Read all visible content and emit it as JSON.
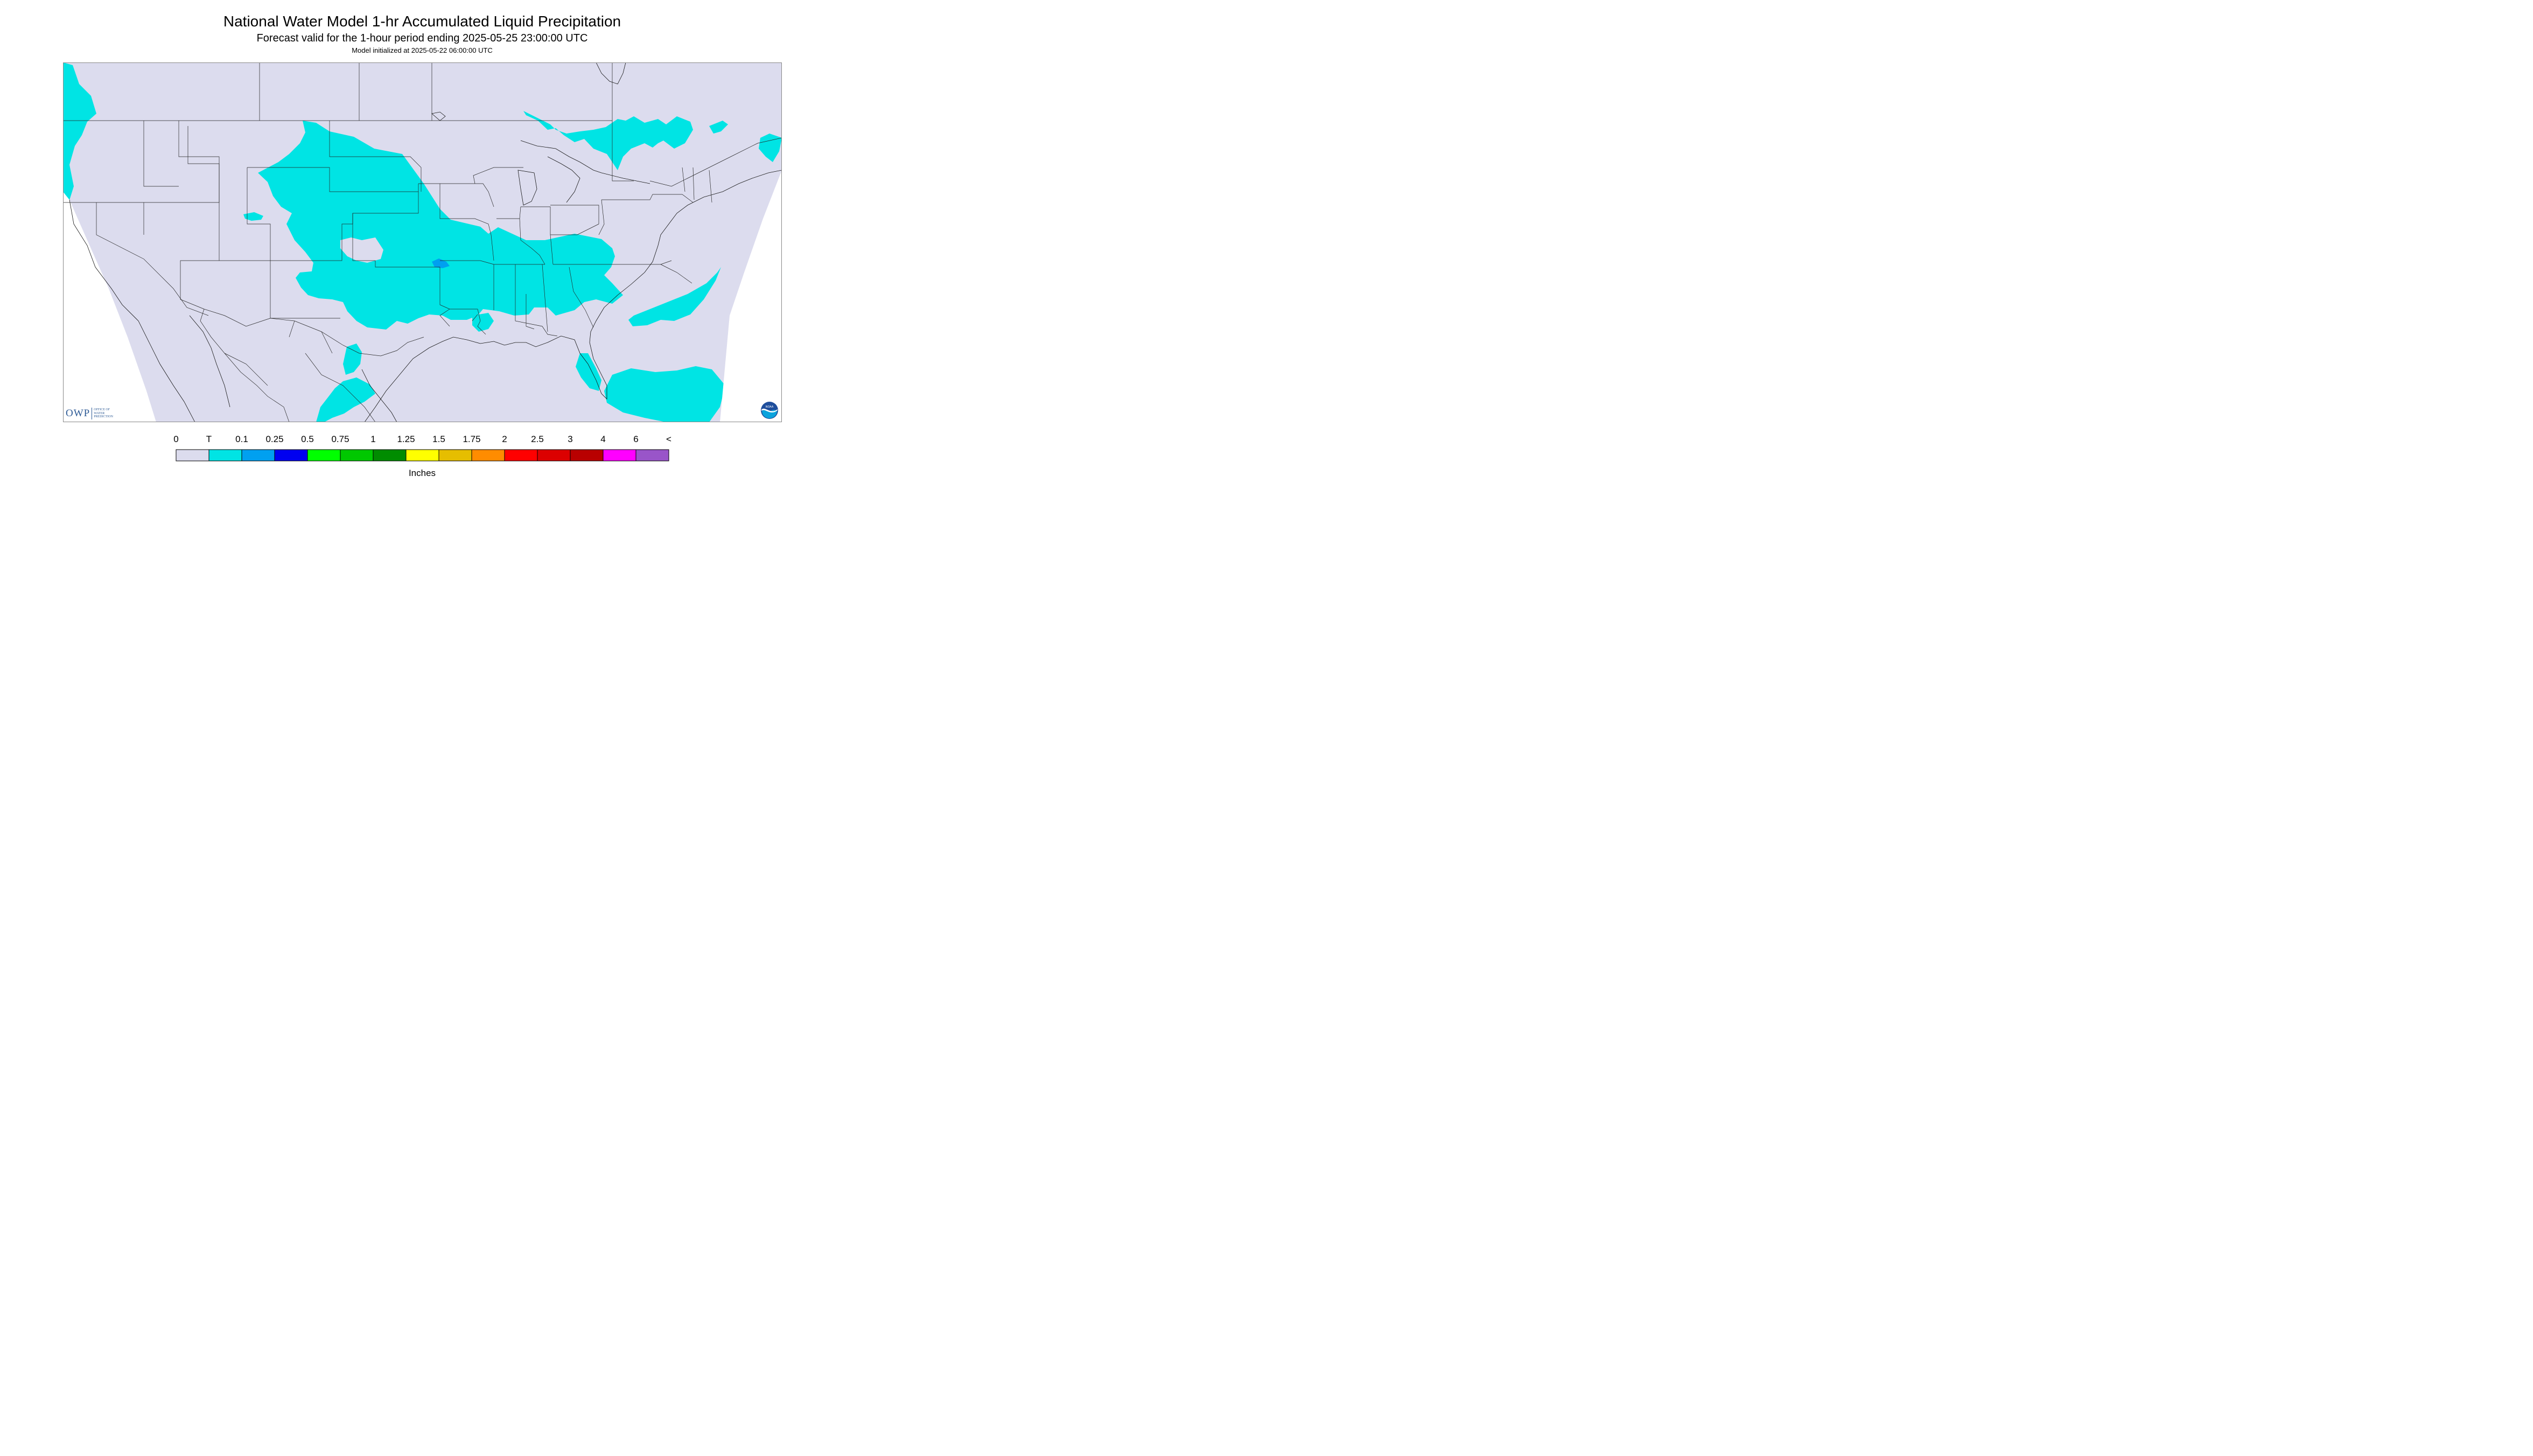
{
  "title": "National Water Model 1-hr Accumulated Liquid Precipitation",
  "subtitle": "Forecast valid for the 1-hour period ending 2025-05-25 23:00:00 UTC",
  "init": "Model initialized at 2025-05-22 06:00:00 UTC",
  "legend": {
    "unit_label": "Inches",
    "tick_labels": [
      "0",
      "T",
      "0.1",
      "0.25",
      "0.5",
      "0.75",
      "1",
      "1.25",
      "1.5",
      "1.75",
      "2",
      "2.5",
      "3",
      "4",
      "6",
      "<"
    ],
    "colors": [
      "#dcdcee",
      "#00e4e4",
      "#00a0f0",
      "#0000f0",
      "#00ff00",
      "#00c800",
      "#008c00",
      "#ffff00",
      "#e6be00",
      "#ff8c00",
      "#ff0000",
      "#dc0000",
      "#b90000",
      "#ff00ff",
      "#9955c9"
    ]
  },
  "logos": {
    "owp_mark": "OWP",
    "owp_name": "OFFICE OF WATER PREDICTION",
    "noaa": "NOAA"
  }
}
